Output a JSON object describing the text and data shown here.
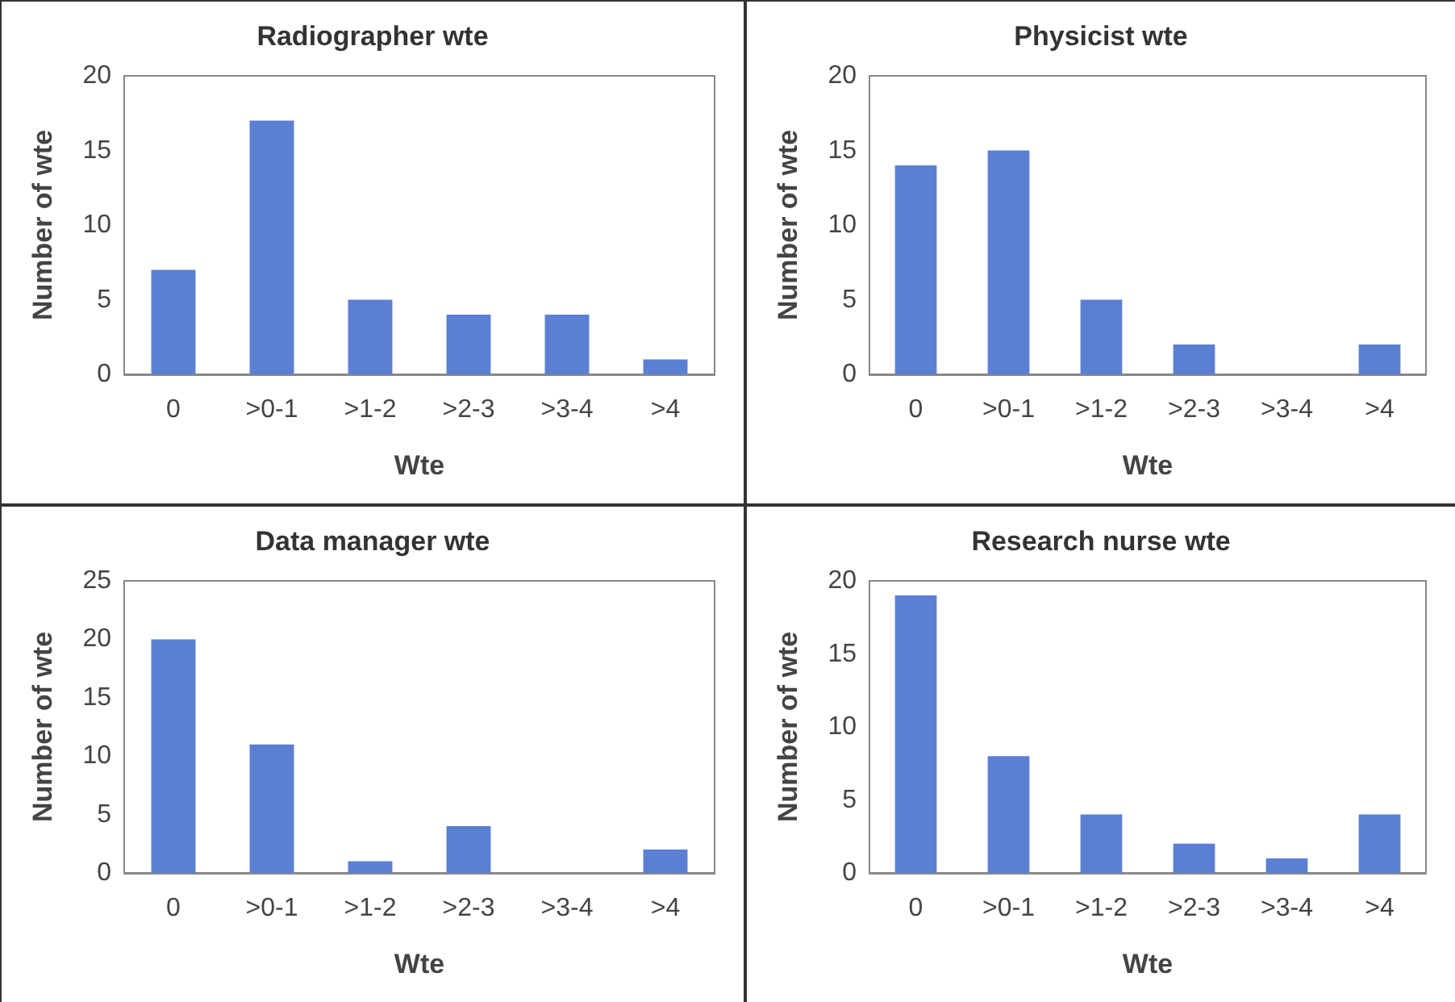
{
  "chart_data": [
    {
      "type": "bar",
      "title": "Radiographer wte",
      "xlabel": "Wte",
      "ylabel": "Number of wte",
      "categories": [
        "0",
        ">0-1",
        ">1-2",
        ">2-3",
        ">3-4",
        ">4"
      ],
      "values": [
        7,
        17,
        5,
        4,
        4,
        1
      ],
      "color": "#5b7fd2",
      "ylim": [
        0,
        20
      ],
      "yticks": [
        0,
        5,
        10,
        15,
        20
      ]
    },
    {
      "type": "bar",
      "title": "Physicist wte",
      "xlabel": "Wte",
      "ylabel": "Number of wte",
      "categories": [
        "0",
        ">0-1",
        ">1-2",
        ">2-3",
        ">3-4",
        ">4"
      ],
      "values": [
        14,
        15,
        5,
        2,
        0,
        2
      ],
      "color": "#5b7fd2",
      "ylim": [
        0,
        20
      ],
      "yticks": [
        0,
        5,
        10,
        15,
        20
      ]
    },
    {
      "type": "bar",
      "title": "Data manager wte",
      "xlabel": "Wte",
      "ylabel": "Number of wte",
      "categories": [
        "0",
        ">0-1",
        ">1-2",
        ">2-3",
        ">3-4",
        ">4"
      ],
      "values": [
        20,
        11,
        1,
        4,
        0,
        2
      ],
      "color": "#5b7fd2",
      "ylim": [
        0,
        25
      ],
      "yticks": [
        0,
        5,
        10,
        15,
        20,
        25
      ]
    },
    {
      "type": "bar",
      "title": "Research nurse wte",
      "xlabel": "Wte",
      "ylabel": "Number of wte",
      "categories": [
        "0",
        ">0-1",
        ">1-2",
        ">2-3",
        ">3-4",
        ">4"
      ],
      "values": [
        19,
        8,
        4,
        2,
        1,
        4
      ],
      "color": "#5b7fd2",
      "ylim": [
        0,
        20
      ],
      "yticks": [
        0,
        5,
        10,
        15,
        20
      ]
    }
  ]
}
